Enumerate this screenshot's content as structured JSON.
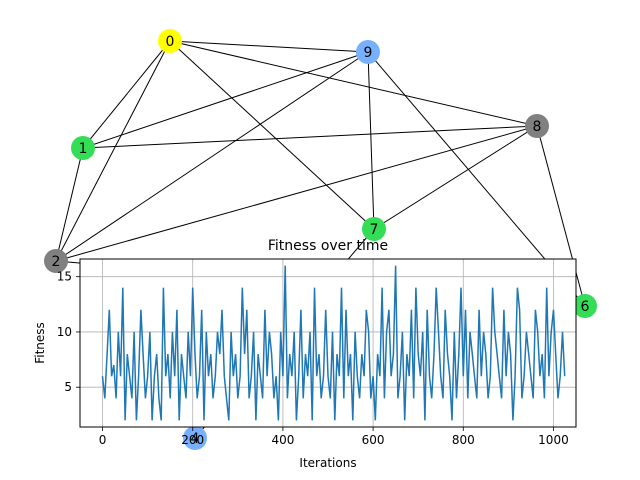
{
  "graph": {
    "nodes": [
      {
        "id": "0",
        "color": "#ffff00"
      },
      {
        "id": "1",
        "color": "#33dd55"
      },
      {
        "id": "2",
        "color": "#808080"
      },
      {
        "id": "4",
        "color": "#77b0ff"
      },
      {
        "id": "6",
        "color": "#33dd55"
      },
      {
        "id": "7",
        "color": "#33dd55"
      },
      {
        "id": "8",
        "color": "#808080"
      },
      {
        "id": "9",
        "color": "#77b0ff"
      }
    ],
    "edges": [
      [
        "0",
        "9"
      ],
      [
        "0",
        "8"
      ],
      [
        "0",
        "1"
      ],
      [
        "0",
        "2"
      ],
      [
        "0",
        "7"
      ],
      [
        "9",
        "1"
      ],
      [
        "9",
        "2"
      ],
      [
        "9",
        "7"
      ],
      [
        "9",
        "6"
      ],
      [
        "8",
        "1"
      ],
      [
        "8",
        "7"
      ],
      [
        "8",
        "2"
      ],
      [
        "8",
        "6"
      ],
      [
        "1",
        "2"
      ],
      [
        "2",
        "6"
      ],
      [
        "7",
        "4"
      ]
    ]
  },
  "chart_data": {
    "type": "line",
    "title": "Fitness over time",
    "xlabel": "Iterations",
    "ylabel": "Fitness",
    "xlim": [
      -50,
      1050
    ],
    "ylim": [
      1.4,
      16.6
    ],
    "xticks": [
      0,
      200,
      400,
      600,
      800,
      1000
    ],
    "yticks": [
      5,
      10,
      15
    ],
    "grid": true,
    "series": [
      {
        "color": "#1f77b4",
        "x_start": 0,
        "x_step": 5,
        "values": [
          6,
          4,
          8,
          12,
          6,
          7,
          4,
          10,
          6,
          14,
          2,
          8,
          6,
          4,
          10,
          2,
          6,
          12,
          8,
          4,
          6,
          10,
          2,
          6,
          8,
          4,
          2,
          14,
          6,
          8,
          4,
          10,
          6,
          12,
          2,
          8,
          6,
          4,
          10,
          6,
          14,
          8,
          4,
          6,
          12,
          2,
          10,
          6,
          8,
          4,
          6,
          10,
          8,
          12,
          6,
          4,
          2,
          10,
          6,
          8,
          4,
          6,
          14,
          8,
          12,
          4,
          6,
          10,
          2,
          8,
          6,
          4,
          12,
          6,
          10,
          8,
          4,
          6,
          2,
          10,
          6,
          16,
          4,
          8,
          6,
          10,
          2,
          6,
          12,
          4,
          8,
          6,
          10,
          2,
          14,
          6,
          8,
          4,
          6,
          12,
          6,
          4,
          10,
          2,
          8,
          6,
          14,
          4,
          12,
          6,
          8,
          2,
          10,
          6,
          4,
          8,
          6,
          12,
          10,
          4,
          6,
          2,
          8,
          6,
          14,
          4,
          10,
          12,
          6,
          8,
          16,
          4,
          6,
          10,
          2,
          8,
          6,
          12,
          4,
          14,
          8,
          6,
          10,
          2,
          12,
          6,
          4,
          8,
          14,
          10,
          6,
          4,
          12,
          8,
          6,
          2,
          10,
          4,
          8,
          14,
          6,
          12,
          4,
          10,
          8,
          6,
          4,
          12,
          6,
          10,
          8,
          4,
          6,
          14,
          10,
          8,
          6,
          4,
          12,
          6,
          10,
          8,
          2,
          6,
          14,
          12,
          4,
          6,
          10,
          8,
          6,
          4,
          12,
          10,
          6,
          8,
          4,
          14,
          6,
          10,
          12,
          8,
          4,
          6,
          10,
          6
        ]
      }
    ]
  }
}
